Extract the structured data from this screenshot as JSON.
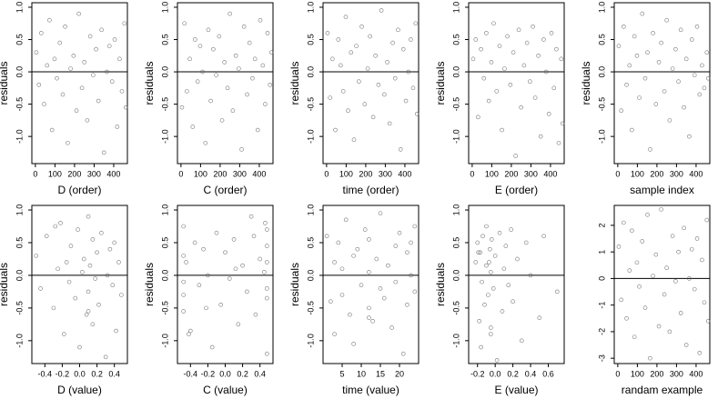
{
  "chart_data": [
    {
      "type": "scatter",
      "x_label": "D (order)",
      "y_label": "residuals",
      "color": "#555555",
      "hline": 0,
      "xlim": [
        -18,
        470
      ],
      "xticks": [
        0,
        100,
        200,
        300,
        400
      ],
      "ylim": [
        -1.42,
        1.07
      ],
      "yticks": [
        {
          "value": -1,
          "label": "-1.0"
        },
        -0.5,
        {
          "value": 0,
          "label": "0.0"
        },
        0.5,
        {
          "value": 1,
          "label": "1.0"
        }
      ],
      "x": [
        5,
        18,
        30,
        45,
        60,
        72,
        85,
        98,
        110,
        125,
        140,
        152,
        165,
        180,
        195,
        210,
        222,
        238,
        250,
        265,
        280,
        295,
        310,
        322,
        338,
        350,
        365,
        378,
        392,
        405,
        418,
        430,
        442,
        455,
        462
      ],
      "values": [
        0.3,
        -0.2,
        0.6,
        -0.5,
        0.1,
        0.8,
        -0.9,
        0.2,
        -0.1,
        0.45,
        -0.35,
        0.7,
        -1.1,
        0.05,
        0.25,
        -0.6,
        0.9,
        -0.25,
        0.15,
        -0.75,
        0.55,
        -0.05,
        0.35,
        -0.45,
        0.65,
        -1.25,
        0.0,
        0.4,
        -0.15,
        0.5,
        -0.85,
        0.2,
        -0.3,
        0.75,
        -0.55
      ]
    },
    {
      "type": "scatter",
      "x_label": "C (order)",
      "y_label": "residuals",
      "color": "#555555",
      "hline": 0,
      "xlim": [
        -18,
        470
      ],
      "xticks": [
        0,
        100,
        200,
        300,
        400
      ],
      "ylim": [
        -1.42,
        1.07
      ],
      "yticks": [
        {
          "value": -1,
          "label": "-1.0"
        },
        -0.5,
        {
          "value": 0,
          "label": "0.0"
        },
        0.5,
        {
          "value": 1,
          "label": "1.0"
        }
      ],
      "x": [
        5,
        18,
        30,
        45,
        60,
        72,
        85,
        98,
        110,
        125,
        140,
        152,
        165,
        180,
        195,
        210,
        222,
        238,
        250,
        265,
        280,
        295,
        310,
        322,
        338,
        350,
        365,
        378,
        392,
        405,
        418,
        430,
        442,
        455,
        462
      ],
      "values": [
        -0.55,
        0.75,
        -0.3,
        0.2,
        -0.85,
        0.5,
        -0.15,
        0.4,
        0.0,
        -1.1,
        0.65,
        -0.45,
        0.35,
        -0.05,
        0.55,
        -0.75,
        0.15,
        -0.25,
        0.9,
        -0.6,
        0.25,
        0.05,
        -1.2,
        0.7,
        -0.35,
        0.45,
        -0.1,
        0.2,
        -0.9,
        0.8,
        0.1,
        -0.5,
        0.6,
        -0.2,
        0.3
      ]
    },
    {
      "type": "scatter",
      "x_label": "time (order)",
      "y_label": "residuals",
      "color": "#555555",
      "hline": 0,
      "xlim": [
        -18,
        470
      ],
      "xticks": [
        0,
        100,
        200,
        300,
        400
      ],
      "ylim": [
        -1.42,
        1.07
      ],
      "yticks": [
        {
          "value": -1,
          "label": "-1.0"
        },
        -0.5,
        {
          "value": 0,
          "label": "0.0"
        },
        0.5,
        {
          "value": 1,
          "label": "1.0"
        }
      ],
      "x": [
        5,
        18,
        30,
        45,
        60,
        72,
        85,
        98,
        110,
        125,
        140,
        152,
        165,
        180,
        195,
        210,
        222,
        238,
        250,
        265,
        280,
        295,
        310,
        322,
        338,
        350,
        365,
        378,
        392,
        405,
        418,
        430,
        442,
        455,
        462
      ],
      "values": [
        0.6,
        -0.4,
        0.2,
        -0.9,
        0.5,
        0.1,
        -0.3,
        0.85,
        -0.6,
        0.3,
        -1.05,
        0.4,
        -0.15,
        0.7,
        -0.5,
        0.05,
        0.55,
        -0.7,
        0.25,
        -0.2,
        0.95,
        -0.35,
        0.15,
        -0.8,
        0.45,
        -0.1,
        0.65,
        -1.2,
        0.35,
        -0.45,
        0.0,
        0.5,
        -0.25,
        0.75,
        -0.65
      ]
    },
    {
      "type": "scatter",
      "x_label": "E (order)",
      "y_label": "residuals",
      "color": "#555555",
      "hline": 0,
      "xlim": [
        -18,
        470
      ],
      "xticks": [
        0,
        100,
        200,
        300,
        400
      ],
      "ylim": [
        -1.42,
        1.07
      ],
      "yticks": [
        {
          "value": -1,
          "label": "-1.0"
        },
        -0.5,
        {
          "value": 0,
          "label": "0.0"
        },
        0.5,
        {
          "value": 1,
          "label": "1.0"
        }
      ],
      "x": [
        5,
        18,
        30,
        45,
        60,
        72,
        85,
        98,
        110,
        125,
        140,
        152,
        165,
        180,
        195,
        210,
        222,
        238,
        250,
        265,
        280,
        295,
        310,
        322,
        338,
        350,
        365,
        378,
        392,
        405,
        418,
        430,
        442,
        455,
        462
      ],
      "values": [
        0.2,
        0.5,
        -0.7,
        0.35,
        -0.1,
        0.6,
        -0.45,
        0.15,
        0.75,
        -0.3,
        0.4,
        -0.9,
        0.05,
        0.55,
        -0.2,
        0.3,
        -1.3,
        0.65,
        -0.55,
        0.1,
        0.45,
        -0.15,
        0.7,
        -0.4,
        0.25,
        -1.0,
        0.5,
        0.0,
        -0.65,
        0.6,
        -0.25,
        0.35,
        -1.1,
        0.2,
        -0.8
      ]
    },
    {
      "type": "scatter",
      "x_label": "sample index",
      "y_label": "residuals",
      "color": "#555555",
      "hline": 0,
      "xlim": [
        -18,
        470
      ],
      "xticks": [
        0,
        100,
        200,
        300,
        400
      ],
      "ylim": [
        -1.42,
        1.07
      ],
      "yticks": [
        {
          "value": -1,
          "label": "-1.0"
        },
        -0.5,
        {
          "value": 0,
          "label": "0.0"
        },
        0.5,
        {
          "value": 1,
          "label": "1.0"
        }
      ],
      "x": [
        5,
        18,
        30,
        45,
        60,
        72,
        85,
        98,
        110,
        125,
        140,
        152,
        165,
        180,
        195,
        210,
        222,
        238,
        250,
        265,
        280,
        295,
        310,
        322,
        338,
        350,
        365,
        378,
        392,
        405,
        418,
        430,
        442,
        455,
        462
      ],
      "values": [
        0.4,
        -0.6,
        0.7,
        -0.2,
        0.1,
        -0.9,
        0.55,
        0.25,
        -0.4,
        0.9,
        -0.1,
        0.3,
        -1.2,
        0.6,
        -0.5,
        0.15,
        0.45,
        -0.3,
        0.8,
        -0.75,
        0.05,
        0.35,
        -0.15,
        0.65,
        -0.55,
        0.2,
        -1.0,
        0.5,
        -0.05,
        0.7,
        -0.35,
        0.1,
        -0.25,
        0.3,
        -0.1
      ]
    },
    {
      "type": "scatter",
      "x_label": "D (value)",
      "y_label": "residuals",
      "color": "#555555",
      "hline": 0,
      "xlim": [
        -0.55,
        0.55
      ],
      "xticks": [
        -0.4,
        -0.2,
        {
          "value": 0,
          "label": "0.0"
        },
        0.2,
        0.4
      ],
      "ylim": [
        -1.35,
        1.07
      ],
      "yticks": [
        {
          "value": -1,
          "label": "-1.0"
        },
        -0.5,
        {
          "value": 0,
          "label": "0.0"
        },
        0.5,
        {
          "value": 1,
          "label": "1.0"
        }
      ],
      "x": [
        -0.5,
        -0.45,
        -0.38,
        -0.3,
        -0.25,
        -0.22,
        -0.18,
        -0.15,
        -0.12,
        -0.1,
        -0.05,
        -0.02,
        0.0,
        0.03,
        0.05,
        0.08,
        0.1,
        0.1,
        0.12,
        0.15,
        0.15,
        0.18,
        0.2,
        0.22,
        0.25,
        0.3,
        0.32,
        0.35,
        0.38,
        0.4,
        0.42,
        0.45,
        0.48,
        -0.28,
        0.1
      ],
      "values": [
        0.3,
        -0.2,
        0.6,
        -0.5,
        0.1,
        0.8,
        -0.9,
        0.2,
        -0.1,
        0.45,
        -0.35,
        0.7,
        -1.1,
        0.05,
        0.25,
        -0.6,
        0.9,
        -0.25,
        0.15,
        -0.75,
        0.55,
        -0.05,
        0.35,
        -0.45,
        0.65,
        -1.25,
        0.0,
        0.4,
        -0.15,
        0.5,
        -0.85,
        0.2,
        -0.3,
        0.75,
        -0.55
      ]
    },
    {
      "type": "scatter",
      "x_label": "C (value)",
      "y_label": "residuals",
      "color": "#555555",
      "hline": 0,
      "xlim": [
        -0.55,
        0.55
      ],
      "xticks": [
        -0.4,
        -0.2,
        {
          "value": 0,
          "label": "0.0"
        },
        0.2,
        0.4
      ],
      "ylim": [
        -1.35,
        1.07
      ],
      "yticks": [
        {
          "value": -1,
          "label": "-1.0"
        },
        -0.5,
        {
          "value": 0,
          "label": "0.0"
        },
        0.5,
        {
          "value": 1,
          "label": "1.0"
        }
      ],
      "x": [
        -0.48,
        -0.48,
        -0.48,
        -0.45,
        -0.4,
        -0.35,
        -0.3,
        -0.25,
        -0.2,
        -0.15,
        -0.1,
        -0.05,
        0.0,
        0.05,
        0.1,
        0.15,
        0.2,
        0.25,
        0.3,
        0.35,
        0.4,
        0.45,
        0.48,
        0.48,
        0.48,
        0.48,
        -0.48,
        0.48,
        -0.42,
        0.46,
        0.12,
        -0.22,
        0.33,
        0.48,
        -0.48
      ],
      "values": [
        -0.55,
        0.75,
        -0.3,
        0.2,
        -0.85,
        0.5,
        -0.15,
        0.4,
        0.0,
        -1.1,
        0.65,
        -0.45,
        0.35,
        -0.05,
        0.55,
        -0.75,
        0.15,
        -0.25,
        0.9,
        -0.6,
        0.25,
        0.05,
        -1.2,
        0.7,
        -0.35,
        0.45,
        -0.1,
        0.2,
        -0.9,
        0.8,
        0.1,
        -0.5,
        0.6,
        -0.2,
        0.3
      ]
    },
    {
      "type": "scatter",
      "x_label": "time (value)",
      "y_label": "residuals",
      "color": "#555555",
      "hline": 0,
      "xlim": [
        0,
        25
      ],
      "xticks": [
        5,
        10,
        15,
        20
      ],
      "ylim": [
        -1.35,
        1.07
      ],
      "yticks": [
        {
          "value": -1,
          "label": "-1.0"
        },
        -0.5,
        {
          "value": 0,
          "label": "0.0"
        },
        0.5,
        {
          "value": 1,
          "label": "1.0"
        }
      ],
      "x": [
        1,
        2,
        3,
        3,
        4,
        5,
        5,
        6,
        7,
        8,
        8,
        9,
        10,
        11,
        12,
        12,
        12,
        13,
        14,
        15,
        15,
        16,
        17,
        18,
        19,
        19,
        20,
        21,
        22,
        22,
        23,
        23,
        24,
        24,
        12
      ],
      "values": [
        0.6,
        -0.4,
        0.2,
        -0.9,
        0.5,
        0.1,
        -0.3,
        0.85,
        -0.6,
        0.3,
        -1.05,
        0.4,
        -0.15,
        0.7,
        -0.5,
        0.05,
        0.55,
        -0.7,
        0.25,
        -0.2,
        0.95,
        -0.35,
        0.15,
        -0.8,
        0.45,
        -0.1,
        0.65,
        -1.2,
        0.35,
        -0.45,
        0.0,
        0.5,
        -0.25,
        0.75,
        -0.65
      ]
    },
    {
      "type": "scatter",
      "x_label": "E (value)",
      "y_label": "residuals",
      "color": "#555555",
      "hline": 0,
      "xlim": [
        -0.3,
        0.78
      ],
      "xticks": [
        -0.2,
        {
          "value": 0,
          "label": "0.0"
        },
        0.2,
        0.4,
        0.6
      ],
      "ylim": [
        -1.35,
        1.07
      ],
      "yticks": [
        {
          "value": -1,
          "label": "-1.0"
        },
        -0.5,
        {
          "value": 0,
          "label": "0.0"
        },
        0.5,
        {
          "value": 1,
          "label": "1.0"
        }
      ],
      "x": [
        -0.22,
        -0.2,
        -0.18,
        -0.17,
        -0.15,
        -0.14,
        -0.12,
        -0.1,
        -0.1,
        -0.08,
        -0.06,
        -0.05,
        -0.05,
        -0.04,
        -0.02,
        0.0,
        0.02,
        0.05,
        0.08,
        0.1,
        0.12,
        0.15,
        0.18,
        0.2,
        0.25,
        0.3,
        0.35,
        0.4,
        0.5,
        0.55,
        0.7,
        -0.19,
        -0.16,
        -0.07,
        -0.05
      ],
      "values": [
        0.2,
        0.5,
        -0.7,
        0.35,
        -0.1,
        0.6,
        -0.45,
        0.15,
        0.75,
        -0.3,
        0.4,
        -0.9,
        0.05,
        0.55,
        -0.2,
        0.3,
        -1.3,
        0.65,
        -0.55,
        0.1,
        0.45,
        -0.15,
        0.7,
        -0.4,
        0.25,
        -1.0,
        0.5,
        0.0,
        -0.65,
        0.6,
        -0.25,
        0.35,
        -1.1,
        0.2,
        -0.8
      ]
    },
    {
      "type": "scatter",
      "x_label": "randam example",
      "color": "#555555",
      "hline": 0,
      "xlim": [
        -18,
        470
      ],
      "xticks": [
        0,
        100,
        200,
        300,
        400
      ],
      "ylim": [
        -3.2,
        2.75
      ],
      "yticks": [
        -3,
        -2,
        -1,
        0,
        1,
        2
      ],
      "x": [
        5,
        18,
        30,
        45,
        60,
        72,
        85,
        98,
        110,
        125,
        140,
        152,
        165,
        180,
        195,
        210,
        222,
        238,
        250,
        265,
        280,
        295,
        310,
        322,
        338,
        350,
        365,
        378,
        392,
        405,
        418,
        430,
        442,
        455,
        462
      ],
      "values": [
        1.2,
        -0.8,
        2.1,
        -1.5,
        0.3,
        1.8,
        -2.2,
        0.6,
        -0.3,
        1.4,
        -1.1,
        2.4,
        -3.0,
        0.1,
        0.9,
        -1.8,
        2.6,
        -0.6,
        0.4,
        -2.0,
        1.6,
        -0.1,
        1.0,
        -1.3,
        1.9,
        -2.5,
        0.0,
        1.1,
        -0.4,
        1.5,
        -2.8,
        0.7,
        -0.9,
        2.2,
        -1.6
      ]
    }
  ]
}
